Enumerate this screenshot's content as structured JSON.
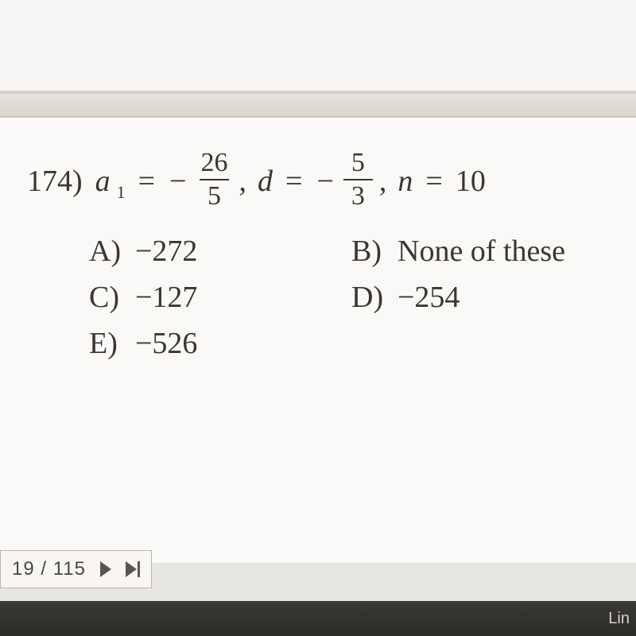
{
  "colors": {
    "text": "#3a3732",
    "page_bg": "#faf9f7",
    "frame_bg": "#e8e6e2",
    "border": "#b9b5ae",
    "taskbar_bg": "#2e2c29",
    "taskbar_text": "#d6d3cd"
  },
  "typography": {
    "question_fontsize_pt": 28,
    "font_family": "Georgia / Times New Roman (serif)"
  },
  "question": {
    "number": "174)",
    "var_a": "a",
    "sub_a": "1",
    "eq": "=",
    "neg": "−",
    "frac1_num": "26",
    "frac1_den": "5",
    "comma": ",",
    "var_d": "d",
    "frac2_num": "5",
    "frac2_den": "3",
    "var_n": "n",
    "n_val": "10"
  },
  "choices": {
    "A": {
      "label": "A)",
      "text": "−272"
    },
    "B": {
      "label": "B)",
      "text": "None of these"
    },
    "C": {
      "label": "C)",
      "text": "−127"
    },
    "D": {
      "label": "D)",
      "text": "−254"
    },
    "E": {
      "label": "E)",
      "text": "−526"
    }
  },
  "pager": {
    "counter": "19 / 115"
  },
  "taskbar": {
    "right_text": "Lin"
  }
}
